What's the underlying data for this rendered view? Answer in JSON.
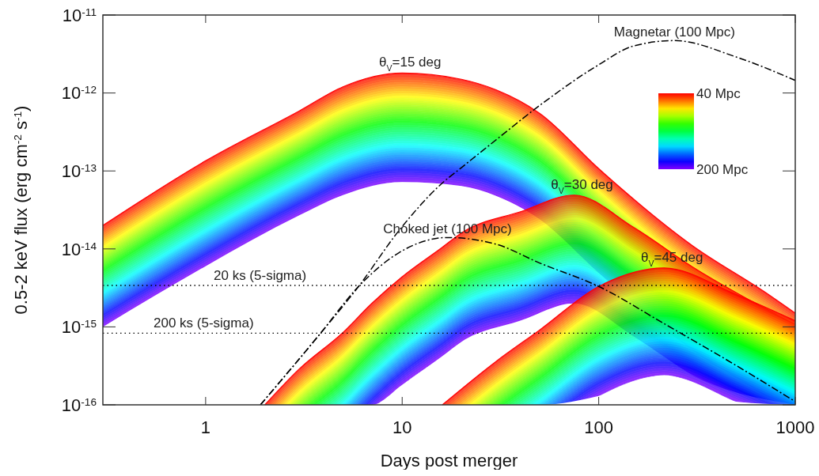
{
  "chart_data": {
    "type": "line",
    "log": "xy",
    "xlabel": "Days post merger",
    "ylabel": "0.5-2 keV flux (erg cm$^{-2}$ s$^{-1}$)",
    "xlim": [
      0.3,
      1000
    ],
    "xticks": [
      1,
      10,
      100,
      1000
    ],
    "ylim": [
      1e-16,
      1e-11
    ],
    "yticks": [
      {
        "value": 1e-16,
        "label": "10$^{-16}$"
      },
      {
        "value": 1e-15,
        "label": "10$^{-15}$"
      },
      {
        "value": 1e-14,
        "label": "10$^{-14}$"
      },
      {
        "value": 1e-13,
        "label": "10$^{-13}$"
      },
      {
        "value": 1e-12,
        "label": "10$^{-12}$"
      },
      {
        "value": 1e-11,
        "label": "10$^{-11}$"
      }
    ],
    "annotations": [
      "40 Mpc",
      "200 Mpc"
    ],
    "series": [
      {
        "name": "θ$_{V}$=15 deg",
        "type": "line",
        "color": "#ff0000",
        "x": [
          0.3,
          1,
          3,
          5,
          10,
          20,
          30,
          50,
          100,
          300,
          700,
          1000
        ],
        "values": [
          2e-14,
          1.35e-13,
          5.9e-13,
          1.2e-12,
          1.8e-12,
          1.5e-12,
          1.1e-12,
          5.5e-13,
          1.07e-13,
          1.1e-14,
          2.8e-15,
          1.5e-15
        ],
        "upper": [
          2e-14,
          1.35e-13,
          5.9e-13,
          1.2e-12,
          1.8e-12,
          1.5e-12,
          1.1e-12,
          5.5e-13,
          1.07e-13,
          1.1e-14,
          2.8e-15,
          1.5e-15
        ],
        "lower": [
          1e-15,
          6e-15,
          2.7e-14,
          4.9e-14,
          7.2e-14,
          6.4e-14,
          4.8e-14,
          2.4e-14,
          4.9e-15,
          5e-16,
          1.3e-16,
          1e-16
        ]
      },
      {
        "name": "θ$_{V}$=30 deg",
        "type": "line",
        "color": "#ff0000",
        "x": [
          2,
          3,
          5,
          7,
          10,
          16,
          20,
          40,
          75,
          150,
          300,
          1000
        ],
        "values": [
          1e-16,
          2.9e-16,
          8.5e-16,
          2e-15,
          4.4e-15,
          1.05e-14,
          1.6e-14,
          3e-14,
          4.9e-14,
          1.9e-14,
          5.9e-15,
          1.07e-15
        ],
        "upper": [
          1e-16,
          2.9e-16,
          8.5e-16,
          2e-15,
          4.4e-15,
          1.05e-14,
          1.6e-14,
          3e-14,
          4.9e-14,
          1.9e-14,
          5.9e-15,
          1.07e-15
        ],
        "lower": [
          1e-16,
          1e-16,
          1e-16,
          1e-16,
          1.8e-16,
          4.2e-16,
          6.4e-16,
          1.2e-15,
          2e-15,
          7.6e-16,
          2.4e-16,
          1e-16
        ]
      },
      {
        "name": "θ$_{V}$=45 deg",
        "type": "line",
        "color": "#ff0000",
        "x": [
          16,
          30,
          50,
          100,
          215,
          500,
          1000
        ],
        "values": [
          1e-16,
          3.6e-16,
          9.1e-16,
          3.3e-15,
          5.7e-15,
          2.6e-15,
          1.2e-15
        ],
        "upper": [
          1e-16,
          3.6e-16,
          9.1e-16,
          3.3e-15,
          5.7e-15,
          2.6e-15,
          1.2e-15
        ],
        "lower": [
          1e-16,
          1e-16,
          1e-16,
          1.3e-16,
          2.4e-16,
          1.1e-16,
          1e-16
        ]
      },
      {
        "name": "Magnetar (100 Mpc)",
        "type": "line",
        "color": "#000000",
        "line_style": "dashdot",
        "x": [
          1.9,
          3.8,
          6,
          9.6,
          16,
          20,
          30,
          50,
          100,
          150,
          243,
          500,
          1000
        ],
        "values": [
          1e-16,
          8e-16,
          3.3e-15,
          1.7e-14,
          7e-14,
          1.1e-13,
          2.5e-13,
          6.9e-13,
          2.3e-12,
          4e-12,
          4.7e-12,
          2.9e-12,
          1.45e-12
        ]
      },
      {
        "name": "Choked jet (100 Mpc)",
        "type": "line",
        "color": "#000000",
        "line_style": "dashdot",
        "x": [
          1.9,
          3.8,
          6,
          9.6,
          17,
          30,
          50,
          100,
          215,
          500,
          1000
        ],
        "values": [
          1e-16,
          8e-16,
          3.3e-15,
          8.9e-15,
          1.4e-14,
          1.15e-14,
          6.6e-15,
          3.3e-15,
          1.1e-15,
          3.2e-16,
          1.1e-16
        ]
      }
    ],
    "ref_lines": [
      {
        "axis": "y",
        "value": 3.4e-15,
        "label": "20 ks (5-sigma)",
        "line_style": "dotted",
        "color": "#000000"
      },
      {
        "axis": "y",
        "value": 8.3e-16,
        "label": "200 ks (5-sigma)",
        "line_style": "dotted",
        "color": "#000000"
      }
    ]
  }
}
